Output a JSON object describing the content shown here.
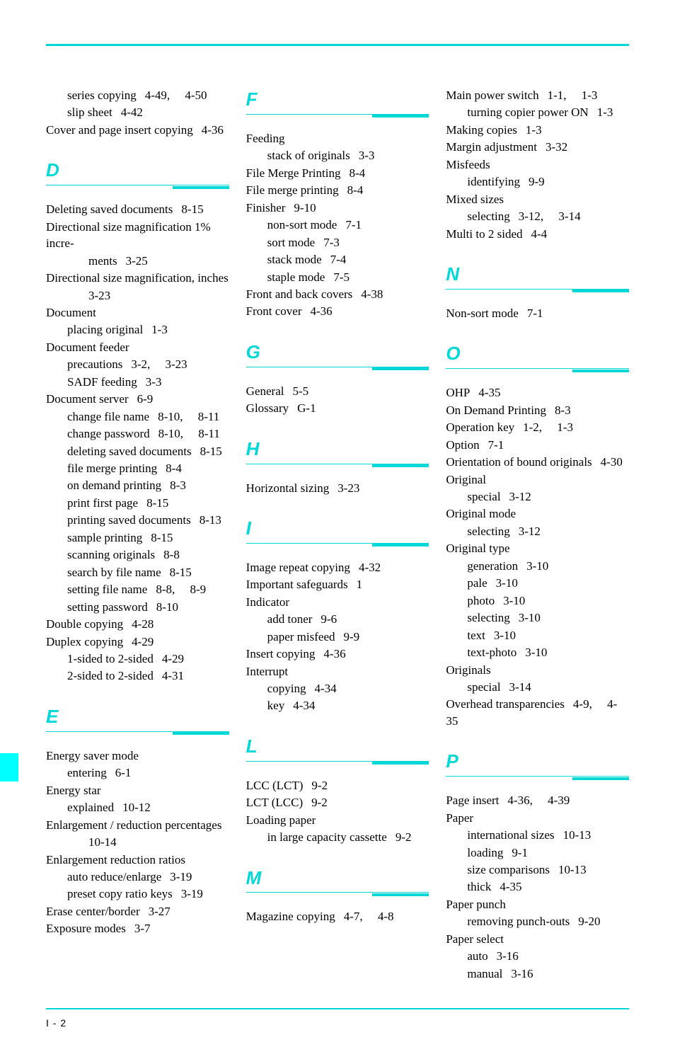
{
  "colors": {
    "accent": "#00d7d7",
    "tab": "#00ffff",
    "text": "#000000",
    "bg": "#ffffff"
  },
  "pageNumber": "I - 2",
  "columns": [
    {
      "pre": [
        {
          "lvl": 1,
          "text": "series copying",
          "refs": "4-49,  4-50"
        },
        {
          "lvl": 1,
          "text": "slip sheet",
          "refs": "4-42"
        },
        {
          "lvl": 0,
          "text": "Cover and page insert copying",
          "refs": "4-36"
        }
      ],
      "sections": [
        {
          "letter": "D",
          "items": [
            {
              "lvl": 0,
              "text": "Deleting saved documents",
              "refs": "8-15"
            },
            {
              "lvl": 0,
              "text": "Directional size magnification 1% incre-"
            },
            {
              "lvl": 2,
              "text": "ments",
              "refs": "3-25"
            },
            {
              "lvl": 0,
              "text": "Directional size magnification, inches"
            },
            {
              "lvl": 2,
              "text": "",
              "refs": "3-23",
              "noIndentSep": true
            },
            {
              "lvl": 0,
              "text": "Document"
            },
            {
              "lvl": 1,
              "text": "placing original",
              "refs": "1-3"
            },
            {
              "lvl": 0,
              "text": "Document feeder"
            },
            {
              "lvl": 1,
              "text": "precautions",
              "refs": "3-2,  3-23"
            },
            {
              "lvl": 1,
              "text": "SADF feeding",
              "refs": "3-3"
            },
            {
              "lvl": 0,
              "text": "Document server",
              "refs": "6-9"
            },
            {
              "lvl": 1,
              "text": "change file name",
              "refs": "8-10,  8-11"
            },
            {
              "lvl": 1,
              "text": "change password",
              "refs": "8-10,  8-11"
            },
            {
              "lvl": 1,
              "text": "deleting saved documents",
              "refs": "8-15"
            },
            {
              "lvl": 1,
              "text": "file merge printing",
              "refs": "8-4"
            },
            {
              "lvl": 1,
              "text": "on demand printing",
              "refs": "8-3"
            },
            {
              "lvl": 1,
              "text": "print first page",
              "refs": "8-15"
            },
            {
              "lvl": 1,
              "text": "printing saved documents",
              "refs": "8-13"
            },
            {
              "lvl": 1,
              "text": "sample printing",
              "refs": "8-15"
            },
            {
              "lvl": 1,
              "text": "scanning originals",
              "refs": "8-8"
            },
            {
              "lvl": 1,
              "text": "search by file name",
              "refs": "8-15"
            },
            {
              "lvl": 1,
              "text": "setting file name",
              "refs": "8-8,  8-9"
            },
            {
              "lvl": 1,
              "text": "setting password",
              "refs": "8-10"
            },
            {
              "lvl": 0,
              "text": "Double copying",
              "refs": "4-28"
            },
            {
              "lvl": 0,
              "text": "Duplex copying",
              "refs": "4-29"
            },
            {
              "lvl": 1,
              "text": "1-sided to 2-sided",
              "refs": "4-29"
            },
            {
              "lvl": 1,
              "text": "2-sided to 2-sided",
              "refs": "4-31"
            }
          ]
        },
        {
          "letter": "E",
          "items": [
            {
              "lvl": 0,
              "text": "Energy saver mode"
            },
            {
              "lvl": 1,
              "text": "entering",
              "refs": "6-1"
            },
            {
              "lvl": 0,
              "text": "Energy star"
            },
            {
              "lvl": 1,
              "text": "explained",
              "refs": "10-12"
            },
            {
              "lvl": 0,
              "text": "Enlargement / reduction percentages"
            },
            {
              "lvl": 2,
              "text": "",
              "refs": "10-14",
              "noIndentSep": true
            },
            {
              "lvl": 0,
              "text": "Enlargement reduction ratios"
            },
            {
              "lvl": 1,
              "text": "auto reduce/enlarge",
              "refs": "3-19"
            },
            {
              "lvl": 1,
              "text": "preset copy ratio keys",
              "refs": "3-19"
            },
            {
              "lvl": 0,
              "text": "Erase center/border",
              "refs": "3-27"
            },
            {
              "lvl": 0,
              "text": "Exposure modes",
              "refs": "3-7"
            }
          ]
        }
      ]
    },
    {
      "pre": [],
      "sections": [
        {
          "letter": "F",
          "first": true,
          "items": [
            {
              "lvl": 0,
              "text": "Feeding"
            },
            {
              "lvl": 1,
              "text": "stack of originals",
              "refs": "3-3"
            },
            {
              "lvl": 0,
              "text": "File Merge Printing",
              "refs": "8-4"
            },
            {
              "lvl": 0,
              "text": "File merge printing",
              "refs": "8-4"
            },
            {
              "lvl": 0,
              "text": "Finisher",
              "refs": "9-10"
            },
            {
              "lvl": 1,
              "text": "non-sort mode",
              "refs": "7-1"
            },
            {
              "lvl": 1,
              "text": "sort mode",
              "refs": "7-3"
            },
            {
              "lvl": 1,
              "text": "stack mode",
              "refs": "7-4"
            },
            {
              "lvl": 1,
              "text": "staple mode",
              "refs": "7-5"
            },
            {
              "lvl": 0,
              "text": "Front and back covers",
              "refs": "4-38"
            },
            {
              "lvl": 0,
              "text": "Front cover",
              "refs": "4-36"
            }
          ]
        },
        {
          "letter": "G",
          "items": [
            {
              "lvl": 0,
              "text": "General",
              "refs": "5-5"
            },
            {
              "lvl": 0,
              "text": "Glossary",
              "refs": "G-1"
            }
          ]
        },
        {
          "letter": "H",
          "items": [
            {
              "lvl": 0,
              "text": "Horizontal sizing",
              "refs": "3-23"
            }
          ]
        },
        {
          "letter": "I",
          "items": [
            {
              "lvl": 0,
              "text": "Image repeat copying",
              "refs": "4-32"
            },
            {
              "lvl": 0,
              "text": "Important safeguards",
              "refs": "1"
            },
            {
              "lvl": 0,
              "text": "Indicator"
            },
            {
              "lvl": 1,
              "text": "add toner",
              "refs": "9-6"
            },
            {
              "lvl": 1,
              "text": "paper misfeed",
              "refs": "9-9"
            },
            {
              "lvl": 0,
              "text": "Insert copying",
              "refs": "4-36"
            },
            {
              "lvl": 0,
              "text": "Interrupt"
            },
            {
              "lvl": 1,
              "text": "copying",
              "refs": "4-34"
            },
            {
              "lvl": 1,
              "text": "key",
              "refs": "4-34"
            }
          ]
        },
        {
          "letter": "L",
          "items": [
            {
              "lvl": 0,
              "text": "LCC (LCT)",
              "refs": "9-2"
            },
            {
              "lvl": 0,
              "text": "LCT (LCC)",
              "refs": "9-2"
            },
            {
              "lvl": 0,
              "text": "Loading paper"
            },
            {
              "lvl": 1,
              "text": "in large capacity cassette",
              "refs": "9-2"
            }
          ]
        },
        {
          "letter": "M",
          "items": [
            {
              "lvl": 0,
              "text": "Magazine copying",
              "refs": "4-7,  4-8"
            }
          ]
        }
      ]
    },
    {
      "pre": [
        {
          "lvl": 0,
          "text": "Main power switch",
          "refs": "1-1,  1-3"
        },
        {
          "lvl": 1,
          "text": "turning copier power ON",
          "refs": "1-3"
        },
        {
          "lvl": 0,
          "text": "Making copies",
          "refs": "1-3"
        },
        {
          "lvl": 0,
          "text": "Margin adjustment",
          "refs": "3-32"
        },
        {
          "lvl": 0,
          "text": "Misfeeds"
        },
        {
          "lvl": 1,
          "text": "identifying",
          "refs": "9-9"
        },
        {
          "lvl": 0,
          "text": "Mixed sizes"
        },
        {
          "lvl": 1,
          "text": "selecting",
          "refs": "3-12,  3-14"
        },
        {
          "lvl": 0,
          "text": "Multi to 2 sided",
          "refs": "4-4"
        }
      ],
      "sections": [
        {
          "letter": "N",
          "items": [
            {
              "lvl": 0,
              "text": "Non-sort mode",
              "refs": "7-1"
            }
          ]
        },
        {
          "letter": "O",
          "items": [
            {
              "lvl": 0,
              "text": "OHP",
              "refs": "4-35"
            },
            {
              "lvl": 0,
              "text": "On Demand Printing",
              "refs": "8-3"
            },
            {
              "lvl": 0,
              "text": "Operation key",
              "refs": "1-2,  1-3"
            },
            {
              "lvl": 0,
              "text": "Option",
              "refs": "7-1"
            },
            {
              "lvl": 0,
              "text": "Orientation of bound originals",
              "refs": "4-30"
            },
            {
              "lvl": 0,
              "text": "Original"
            },
            {
              "lvl": 1,
              "text": "special",
              "refs": "3-12"
            },
            {
              "lvl": 0,
              "text": "Original mode"
            },
            {
              "lvl": 1,
              "text": "selecting",
              "refs": "3-12"
            },
            {
              "lvl": 0,
              "text": "Original type"
            },
            {
              "lvl": 1,
              "text": "generation",
              "refs": "3-10"
            },
            {
              "lvl": 1,
              "text": "pale",
              "refs": "3-10"
            },
            {
              "lvl": 1,
              "text": "photo",
              "refs": "3-10"
            },
            {
              "lvl": 1,
              "text": "selecting",
              "refs": "3-10"
            },
            {
              "lvl": 1,
              "text": "text",
              "refs": "3-10"
            },
            {
              "lvl": 1,
              "text": "text-photo",
              "refs": "3-10"
            },
            {
              "lvl": 0,
              "text": "Originals"
            },
            {
              "lvl": 1,
              "text": "special",
              "refs": "3-14"
            },
            {
              "lvl": 0,
              "text": "Overhead transparencies",
              "refs": "4-9,  4-35"
            }
          ]
        },
        {
          "letter": "P",
          "items": [
            {
              "lvl": 0,
              "text": "Page insert",
              "refs": "4-36,  4-39"
            },
            {
              "lvl": 0,
              "text": "Paper"
            },
            {
              "lvl": 1,
              "text": "international sizes",
              "refs": "10-13"
            },
            {
              "lvl": 1,
              "text": "loading",
              "refs": "9-1"
            },
            {
              "lvl": 1,
              "text": "size comparisons",
              "refs": "10-13"
            },
            {
              "lvl": 1,
              "text": "thick",
              "refs": "4-35"
            },
            {
              "lvl": 0,
              "text": "Paper punch"
            },
            {
              "lvl": 1,
              "text": "removing punch-outs",
              "refs": "9-20"
            },
            {
              "lvl": 0,
              "text": "Paper select"
            },
            {
              "lvl": 1,
              "text": "auto",
              "refs": "3-16"
            },
            {
              "lvl": 1,
              "text": "manual",
              "refs": "3-16"
            }
          ]
        }
      ]
    }
  ]
}
